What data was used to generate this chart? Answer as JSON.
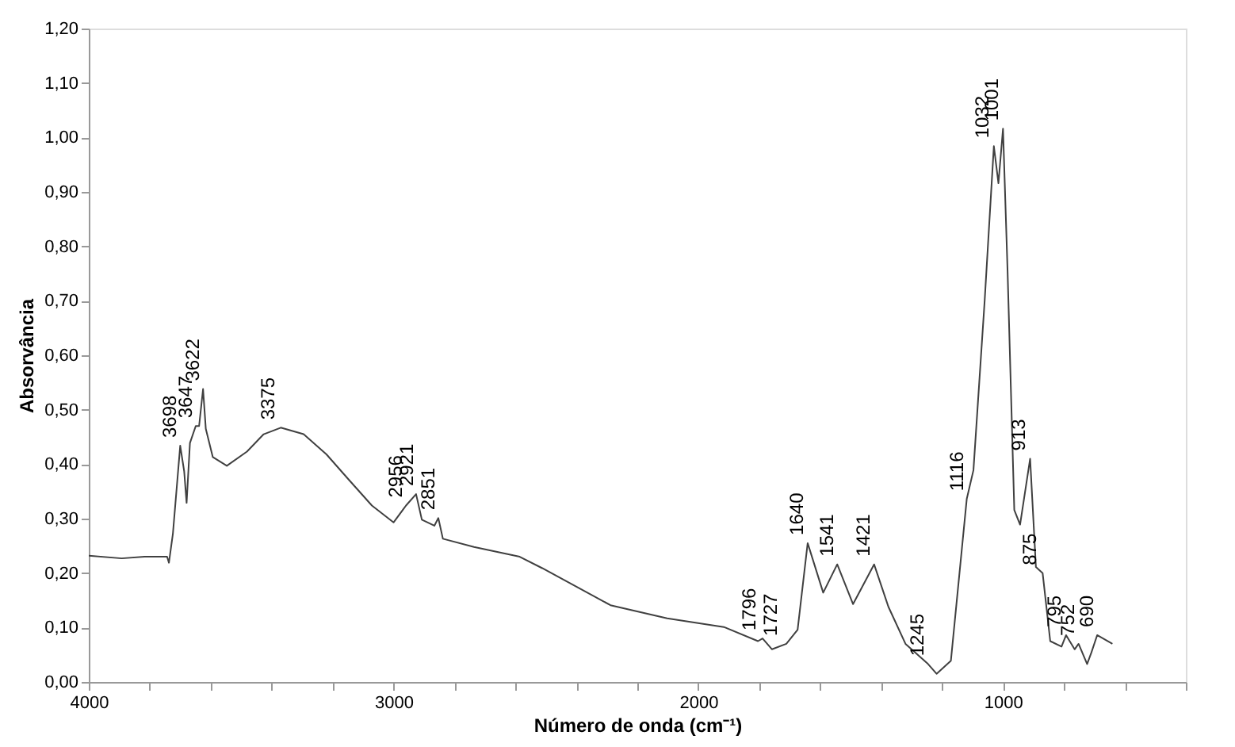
{
  "chart_data": {
    "type": "line",
    "xlabel": "Número de onda (cm⁻¹)",
    "ylabel": "Absorvância",
    "xlim": [
      4000,
      400
    ],
    "xticks": [
      4000,
      {
        "value": 3800,
        "label": null
      },
      {
        "value": 3600,
        "label": null
      },
      {
        "value": 3400,
        "label": null
      },
      {
        "value": 3200,
        "label": null
      },
      3000,
      {
        "value": 2800,
        "label": null
      },
      {
        "value": 2600,
        "label": null
      },
      {
        "value": 2400,
        "label": null
      },
      {
        "value": 2200,
        "label": null
      },
      2000,
      {
        "value": 1800,
        "label": null
      },
      {
        "value": 1600,
        "label": null
      },
      {
        "value": 1400,
        "label": null
      },
      {
        "value": 1200,
        "label": null
      },
      1000,
      {
        "value": 800,
        "label": null
      },
      {
        "value": 600,
        "label": null
      },
      {
        "value": 400,
        "label": null
      }
    ],
    "ylim": [
      0,
      1.2
    ],
    "yticks": [
      {
        "value": 0,
        "label": "0,00"
      },
      {
        "value": 0.1,
        "label": "0,10"
      },
      {
        "value": 0.2,
        "label": "0,20"
      },
      {
        "value": 0.3,
        "label": "0,30"
      },
      {
        "value": 0.4,
        "label": "0,40"
      },
      {
        "value": 0.5,
        "label": "0,50"
      },
      {
        "value": 0.6,
        "label": "0,60"
      },
      {
        "value": 0.7,
        "label": "0,70"
      },
      {
        "value": 0.8,
        "label": "0,80"
      },
      {
        "value": 0.9,
        "label": "0,90"
      },
      {
        "value": 1.0,
        "label": "1,00"
      },
      {
        "value": 1.1,
        "label": "1,10"
      },
      {
        "value": 1.2,
        "label": "1,20"
      }
    ],
    "grid": false,
    "marker": "none",
    "line_style": "solid",
    "series": [
      {
        "color": "#404040",
        "x": [
          4000,
          3892,
          3817,
          3743,
          3737,
          3724,
          3700,
          3687,
          3679,
          3668,
          3649,
          3638,
          3625,
          3616,
          3593,
          3547,
          3481,
          3426,
          3370,
          3295,
          3220,
          3146,
          3071,
          3000,
          2959,
          2926,
          2907,
          2866,
          2853,
          2838,
          2736,
          2586,
          2512,
          2288,
          2102,
          1916,
          1804,
          1789,
          1758,
          1711,
          1674,
          1641,
          1590,
          1544,
          1492,
          1423,
          1376,
          1320,
          1246,
          1218,
          1171,
          1119,
          1097,
          1060,
          1030,
          1015,
          1000,
          985,
          963,
          944,
          911,
          892,
          870,
          845,
          808,
          793,
          765,
          752,
          724,
          710,
          691,
          641
        ],
        "values": [
          0.232,
          0.227,
          0.23,
          0.23,
          0.219,
          0.272,
          0.434,
          0.387,
          0.329,
          0.439,
          0.47,
          0.47,
          0.538,
          0.465,
          0.413,
          0.397,
          0.423,
          0.455,
          0.467,
          0.455,
          0.418,
          0.371,
          0.324,
          0.293,
          0.324,
          0.345,
          0.298,
          0.287,
          0.301,
          0.263,
          0.248,
          0.23,
          0.209,
          0.141,
          0.117,
          0.101,
          0.075,
          0.08,
          0.06,
          0.07,
          0.096,
          0.255,
          0.164,
          0.216,
          0.143,
          0.216,
          0.138,
          0.07,
          0.033,
          0.015,
          0.039,
          0.336,
          0.389,
          0.702,
          0.984,
          0.916,
          1.016,
          0.754,
          0.316,
          0.289,
          0.41,
          0.211,
          0.2,
          0.075,
          0.065,
          0.086,
          0.06,
          0.07,
          0.033,
          0.054,
          0.086,
          0.07
        ]
      }
    ],
    "annotations": [
      {
        "text": "3698",
        "x": 3698,
        "y": 0.434
      },
      {
        "text": "3647",
        "x": 3647,
        "y": 0.47
      },
      {
        "text": "3622",
        "x": 3622,
        "y": 0.538
      },
      {
        "text": "3375",
        "x": 3375,
        "y": 0.467
      },
      {
        "text": "2956",
        "x": 2956,
        "y": 0.324
      },
      {
        "text": "2921",
        "x": 2921,
        "y": 0.345
      },
      {
        "text": "2851",
        "x": 2851,
        "y": 0.301
      },
      {
        "text": "1796",
        "x": 1796,
        "y": 0.08
      },
      {
        "text": "1727",
        "x": 1727,
        "y": 0.07
      },
      {
        "text": "1640",
        "x": 1640,
        "y": 0.255
      },
      {
        "text": "1541",
        "x": 1541,
        "y": 0.216
      },
      {
        "text": "1421",
        "x": 1421,
        "y": 0.216
      },
      {
        "text": "1245",
        "x": 1245,
        "y": 0.033
      },
      {
        "text": "1116",
        "x": 1116,
        "y": 0.336
      },
      {
        "text": "1032",
        "x": 1032,
        "y": 0.984
      },
      {
        "text": "1001",
        "x": 1001,
        "y": 1.016
      },
      {
        "text": "913",
        "x": 913,
        "y": 0.41
      },
      {
        "text": "875",
        "x": 875,
        "y": 0.2
      },
      {
        "text": "795",
        "x": 795,
        "y": 0.086
      },
      {
        "text": "752",
        "x": 752,
        "y": 0.07
      },
      {
        "text": "690",
        "x": 690,
        "y": 0.086
      }
    ]
  }
}
